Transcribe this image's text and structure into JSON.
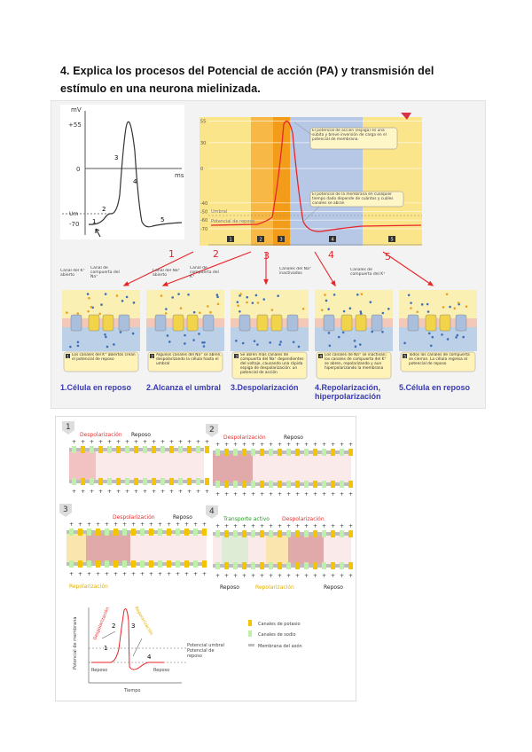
{
  "question": {
    "title": "4. Explica los procesos del Potencial de acción (PA) y transmisión del estímulo en una neurona mielinizada."
  },
  "figure1": {
    "simple_graph": {
      "y_unit": "mV",
      "x_unit": "ms",
      "ticks": [
        "+55",
        "0",
        "Um",
        "-70"
      ],
      "phase_labels": [
        "1",
        "2",
        "3",
        "4",
        "5"
      ]
    },
    "colored_graph": {
      "ticks": [
        "55",
        "30",
        "0",
        "-40",
        "-50",
        "-60",
        "-70"
      ],
      "umbral_label": "Umbral",
      "reposo_label": "Potencial de reposo",
      "callout_top": "El potencial de acción (espiga) es una súbita y breve inversión de carga en el potencial de membrana.",
      "callout_bottom": "El potencial de la membrana en cualquier tiempo dado depende de cuántos y cuáles canales se abran",
      "phase_boxes": [
        "1",
        "2",
        "3",
        "4",
        "5"
      ],
      "band_colors": [
        "#fbe58a",
        "#f7b845",
        "#f39c1a",
        "#b6c8e6",
        "#fbe58a"
      ]
    },
    "arrow_numbers": [
      "1",
      "2",
      "3",
      "4",
      "5"
    ],
    "panel_labels": {
      "k_open": "Canal del K⁺ abierto",
      "na_gate": "Canal de compuerta del Na⁺",
      "na_open": "Canal del Na⁺ abierto",
      "k_gate": "Canal de compuerta del K⁺",
      "na_inact": "Canales del Na⁺ inactivados",
      "k_gates": "Canales de compuerta del K⁺"
    },
    "panels": [
      {
        "num": "1",
        "caption": "Los canales del K⁺ abiertos crean el potencial de reposo",
        "stage": "1.Célula en reposo"
      },
      {
        "num": "2",
        "caption": "Algunos canales del Na⁺ se abren, despolarizando la célula hasta el umbral",
        "stage": "2.Alcanza el umbral"
      },
      {
        "num": "3",
        "caption": "Se abren más canales de compuerta del Na⁺ dependientes del voltaje, causando una rápida espiga de despolarización: un potencial de acción",
        "stage": "3.Despolarización"
      },
      {
        "num": "4",
        "caption": "Los canales de Na⁺ se inactivan; los canales de compuerta del K⁺ se abren, repolarizando y aun hiperpolarizando la membrana",
        "stage": "4.Repolarización, hiperpolarización"
      },
      {
        "num": "5",
        "caption": "Todos los canales de compuerta se cierran. La célula regresa al potencial de reposo",
        "stage": "5.Célula en reposo"
      }
    ]
  },
  "figure2": {
    "axons": [
      {
        "num": "1",
        "labels": [
          "Despolarización",
          "Reposo"
        ]
      },
      {
        "num": "2",
        "labels": [
          "Despolarización",
          "Reposo"
        ]
      },
      {
        "num": "3",
        "labels": [
          "Despolarización",
          "Reposo",
          "Repolarización"
        ]
      },
      {
        "num": "4",
        "labels": [
          "Transporte activo",
          "Despolarización",
          "Reposo",
          "Repolarización",
          "Reposo"
        ]
      }
    ],
    "graph": {
      "ylabel": "Potencial de membrana",
      "xlabel": "Tiempo",
      "phase_nums": [
        "1",
        "2",
        "3",
        "4"
      ],
      "despol": "Despolarización",
      "repol": "Repolarización",
      "umbral": "Potencial umbral",
      "reposo": "Potencial de reposo",
      "reposo_left": "Reposo",
      "reposo_right": "Reposo"
    },
    "legend": [
      {
        "label": "Canales de potasio",
        "color": "#f5c400"
      },
      {
        "label": "Canales de sodio",
        "color": "#bff0a8"
      },
      {
        "label": "Membrana del axón",
        "color": "#bdbdbd"
      }
    ]
  },
  "colors": {
    "red": "#e8262a",
    "stage_blue": "#3a3ab0",
    "depol_red": "#e83030",
    "repol_yellow": "#e0b000",
    "green": "#2a9a2a"
  }
}
